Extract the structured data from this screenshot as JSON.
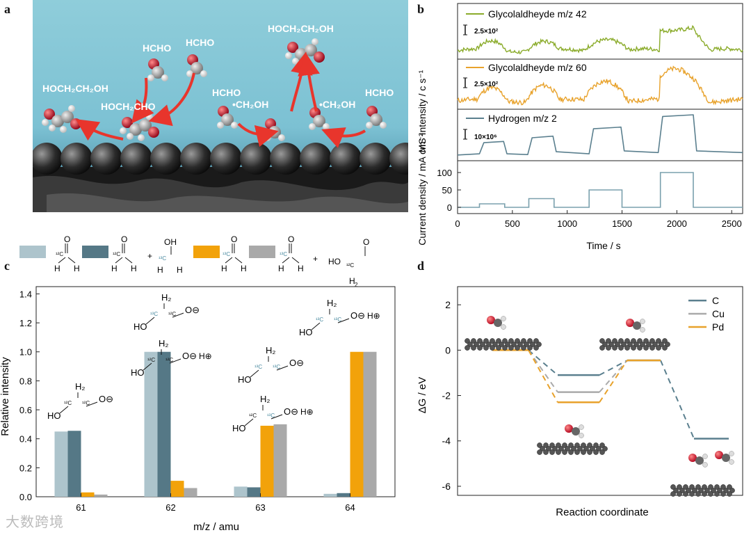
{
  "panels": {
    "a": "a",
    "b": "b",
    "c": "c",
    "d": "d"
  },
  "panel_a": {
    "labels": [
      "HCHO",
      "HCHO",
      "HOCH₂CH₂OH",
      "HOCH₂CH₂OH",
      "HOCH₂CHO",
      "HCHO",
      "•CH₂OH",
      "•CH₂OH",
      "HCHO"
    ]
  },
  "chart_data": [
    {
      "type": "line",
      "panel": "b",
      "ylabel": "MS Intensity / c s⁻¹",
      "series": [
        {
          "name": "Glycolaldheyde m/z 42",
          "color": "#8aab2a",
          "scale_label": "2.5×10²"
        },
        {
          "name": "Glycolaldheyde m/z 60",
          "color": "#e8a22b",
          "scale_label": "2.5×10²"
        },
        {
          "name": "Hydrogen m/z 2",
          "color": "#5a7f8e",
          "scale_label": "10×10⁶",
          "x": [
            0,
            200,
            240,
            420,
            450,
            640,
            680,
            870,
            900,
            1200,
            1240,
            1490,
            1520,
            1830,
            1870,
            2150,
            2180,
            2600
          ],
          "y": [
            0.02,
            0.05,
            0.32,
            0.35,
            0.05,
            0.03,
            0.44,
            0.48,
            0.1,
            0.05,
            0.66,
            0.7,
            0.12,
            0.08,
            0.96,
            1.0,
            0.12,
            0.08
          ]
        }
      ]
    },
    {
      "type": "line",
      "panel": "b",
      "xlabel": "Time / s",
      "ylabel": "Current density / mA cm⁻²",
      "xlim": [
        0,
        2600
      ],
      "ylim": [
        -10,
        115
      ],
      "xticks": [
        "0",
        "500",
        "1000",
        "1500",
        "2000",
        "2500"
      ],
      "yticks": [
        "0",
        "50",
        "100"
      ],
      "x": [
        0,
        200,
        200,
        430,
        430,
        650,
        650,
        880,
        880,
        1200,
        1200,
        1500,
        1500,
        1850,
        1850,
        2150,
        2150,
        2600
      ],
      "y": [
        0,
        0,
        10,
        10,
        0,
        0,
        25,
        25,
        0,
        0,
        50,
        50,
        0,
        0,
        100,
        100,
        0,
        0
      ],
      "color": "#7aa0ad"
    },
    {
      "type": "bar",
      "panel": "c",
      "xlabel": "m/z / amu",
      "ylabel": "Relative intensity",
      "ylim": [
        0,
        1.45
      ],
      "yticks": [
        "0.0",
        "0.2",
        "0.4",
        "0.6",
        "0.8",
        "1.0",
        "1.2",
        "1.4"
      ],
      "categories": [
        "61",
        "62",
        "63",
        "64"
      ],
      "series": [
        {
          "color": "#adc4cc",
          "values": [
            0.45,
            1.0,
            0.07,
            0.02
          ]
        },
        {
          "color": "#557886",
          "values": [
            0.455,
            1.0,
            0.065,
            0.025
          ]
        },
        {
          "color": "#f2a20a",
          "values": [
            0.03,
            0.11,
            0.49,
            1.0
          ]
        },
        {
          "color": "#a9a9a9",
          "values": [
            0.015,
            0.06,
            0.5,
            1.0
          ]
        }
      ],
      "legend_notes": [
        "¹²C",
        "¹²C",
        "+",
        "¹³C",
        "¹³C",
        "¹³C",
        "+",
        "¹²C"
      ],
      "annotations": [
        "H₂",
        "¹²C",
        "¹²C",
        "HO",
        "O⊖",
        "H₂",
        "¹³C",
        "¹²C",
        "HO",
        "O⊖",
        "H₂",
        "¹²C",
        "¹²C",
        "HO",
        "O⊖",
        "H⊕",
        "H₂",
        "¹³C",
        "¹³C",
        "HO",
        "O⊖",
        "H₂",
        "¹²C",
        "¹³C",
        "HO",
        "O⊖",
        "H⊕",
        "H₂",
        "¹³C",
        "¹³C",
        "HO",
        "O⊖",
        "H⊕"
      ]
    },
    {
      "type": "line",
      "panel": "d",
      "xlabel": "Reaction coordinate",
      "ylabel": "ΔG / eV",
      "ylim": [
        -6.4,
        2.8
      ],
      "yticks": [
        "2",
        "0",
        "-2",
        "-4",
        "-6"
      ],
      "series": [
        {
          "name": "C",
          "color": "#5a7f8e",
          "levels": [
            0,
            -1.1,
            -0.45,
            -3.9
          ]
        },
        {
          "name": "Cu",
          "color": "#aaaaaa",
          "levels": [
            0,
            -1.85,
            -0.45
          ]
        },
        {
          "name": "Pd",
          "color": "#e8a22b",
          "levels": [
            0,
            -2.3,
            -0.45
          ]
        }
      ]
    }
  ],
  "watermark": "大数跨境"
}
